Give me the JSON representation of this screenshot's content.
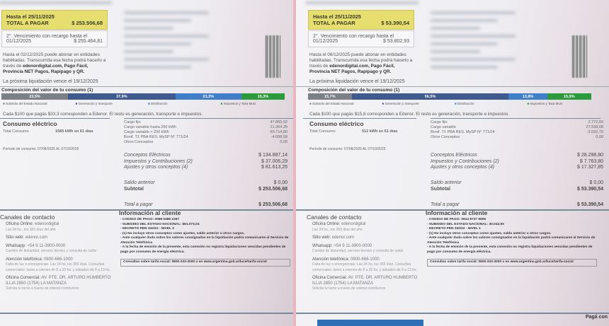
{
  "bills": [
    {
      "total_label": "TOTAL A PAGAR",
      "due1": "Hasta el 25/11/2025",
      "total": "$ 253.506,68",
      "second_due_label": "2°. Vencimiento con recargo hasta el",
      "second_due_date": "01/12/2025",
      "second_due_amount": "$ 255.464,81",
      "pay_text_1": "Hasta el 02/12/2025 puede abonar en entidades habilitadas. Transcurrida esa fecha podrá hacerlo a través de",
      "pay_text_2": "edenordigital.com, Pago Fácil, Provincia NET Pagos, Rapipago y QR.",
      "next": "La próxima liquidación vence el 19/12/2025",
      "composition_title": "Composición del valor de tu consumo (1)",
      "composition": [
        {
          "pct": 23.5,
          "label": "23,5%",
          "color": "#7d7f88"
        },
        {
          "pct": 37.9,
          "label": "37,9%",
          "color": "#3f5a8f"
        },
        {
          "pct": 23.3,
          "label": "23,3%",
          "color": "#3f7fc9"
        },
        {
          "pct": 15.3,
          "label": "15,3%",
          "color": "#2a9a3a"
        }
      ],
      "legend": [
        "Subsidio del Estado Nacional",
        "Generación y transporte",
        "Distribución",
        "Impuestos y Tasa Muni"
      ],
      "each100": "Cada $100 que pagás $33,3 corresponden a Edenor. El resto es generación, transporte e impuestos.",
      "consumo_title": "Consumo eléctrico",
      "consumo_label": "Total Consumo",
      "consumo_value": "1565  kWh en 61 días",
      "periodo": "Período de consumo:  07/08/2025 AL 07/10/2025",
      "charges": [
        "Cargo fijo",
        "Cargo variable hasta 250 kWh",
        "Cargo variable > 250 kWh",
        "Bonif. T1 PBA RES. MySP N° 771/24",
        "Otros Conceptos"
      ],
      "charge_values": [
        "47.865,92",
        "21.364,35",
        "69.714,80",
        "-4.058,58",
        "0,00"
      ],
      "summary": [
        {
          "label": "Conceptos Eléctricos",
          "value": "$ 134.887,14"
        },
        {
          "label": "Impuestos y Contribuciones (2)",
          "value": "$ 37.006,29"
        },
        {
          "label": "Ajustes y otros conceptos (4)",
          "value": "$ 81.613,25"
        }
      ],
      "saldo_label": "Saldo anterior",
      "saldo": "$ 0,00",
      "subtotal_label": "Subtotal",
      "subtotal": "$ 253.506,68",
      "total_pagar_label": "Total a pagar",
      "total_pagar": "$ 253.506,68",
      "contact_title": "Canales de contacto",
      "info_title": "Información al cliente",
      "info": [
        "- CODIGO DE PAGO: 0068 0488 2267",
        "- SUBSIDIO DEL ESTADO NACIONAL: $61.073,04",
        "- DECRETO PEN 332/22 - NIVEL 3",
        "- (1) No incluye otros conceptos como ajustes, saldo anterior u otros cargos.",
        "- Ante cualquier duda sobre los valores consignados en la liquidación podrá comunicarse al Servicio de Atención Telefónica",
        "- A la fecha de emisión de la presente, esta conexión no registra liquidaciones vencidas pendientes de pago por consumo de energía eléctrica."
      ],
      "tarifa": "Consultas sobre tarifa social: 0800-333-3000 o en www.argentina.gob.ar/luce/tarifa-social"
    },
    {
      "total_label": "TOTAL A PAGAR",
      "due1": "Hasta el 25/11/2025",
      "total": "$ 53.390,54",
      "second_due_label": "2°. Vencimiento con recargo hasta el",
      "second_due_date": "01/12/2025",
      "second_due_amount": "$ 53.802,93",
      "pay_text_1": "Hasta el 08/12/2025 puede abonar en entidades habilitadas. Transcurrida esa fecha podrá hacerlo a través de",
      "pay_text_2": "edenordigital.com, Pago Fácil, Provincia NET Pagos, Rapipago y QR.",
      "next": "La próxima liquidación vence el 19/12/2025",
      "composition_title": "Composición del valor de tu consumo (1)",
      "composition": [
        {
          "pct": 15.7,
          "label": "15,7%",
          "color": "#7d7f88"
        },
        {
          "pct": 56.5,
          "label": "56,5%",
          "color": "#3f5a8f"
        },
        {
          "pct": 13.8,
          "label": "13,8%",
          "color": "#3f7fc9"
        },
        {
          "pct": 15.9,
          "label": "15,9%",
          "color": "#2a9a3a"
        }
      ],
      "legend": [
        "Subsidio del Estado Nacional",
        "Generación y transporte",
        "Distribución",
        "Impuestos y Tasa Muni"
      ],
      "each100": "Cada $100 que pagás $15,8 corresponden a Edenor. El resto es generación, transporte e impuestos.",
      "consumo_title": "Consumo eléctrico",
      "consumo_label": "Total Consumo",
      "consumo_value": "512  kWh en 61 días",
      "periodo": "Período de consumo:  07/08/2025 AL 07/10/2025",
      "charges": [
        "Cargo fijo",
        "Cargo variable",
        "Bonif. T1 PBA RES. MySP N° 771/24",
        "Otros Conceptos"
      ],
      "charge_values": [
        "2.772,59",
        "27.558,08",
        "-2.032,79",
        "0,00"
      ],
      "summary": [
        {
          "label": "Conceptos Eléctricos",
          "value": "$ 28.298,80"
        },
        {
          "label": "Impuestos y Contribuciones (2)",
          "value": "$ 7.763,80"
        },
        {
          "label": "Ajustes y otros conceptos (4)",
          "value": "$ 17.327,85"
        }
      ],
      "saldo_label": "Saldo anterior",
      "saldo": "$ 0,00",
      "subtotal_label": "Subtotal",
      "subtotal": "$ 53.390,54",
      "total_pagar_label": "Total a pagar",
      "total_pagar": "$ 53.390,54",
      "contact_title": "Canales de contacto",
      "info_title": "Información al cliente",
      "info": [
        "- CODIGO DE PAGO: 0614 8737 9606",
        "- SUBSIDIO DEL ESTADO NACIONAL: 30.042,93",
        "- DECRETO PEN 332/22 - NIVEL 1",
        "- (1) No incluye otros conceptos como ajustes, saldo anterior u otros cargos.",
        "- Ante cualquier duda sobre los valores consignados en la liquidación podrá comunicarse al Servicio de Atención Telefónica",
        "- A la fecha de emisión de la presente, esta conexión no registra liquidaciones vencidas pendientes de pago por consumo de energía eléctrica."
      ],
      "tarifa": "Consultas sobre tarifa social: 0800-333-3000 o en www.argentina.gob.ar/luce/tarifa-social",
      "paga_con": "Pagá con"
    }
  ],
  "contact": [
    {
      "title": "Oficina Online:",
      "value": "edenordigital",
      "sub": "Las 24 hs., los 365 días del año"
    },
    {
      "title": "Sitio web:",
      "value": "edenor.com",
      "sub": ""
    },
    {
      "title": "Whatsapp:",
      "value": "+54 9 11-3900-0000",
      "sub": "Cambio de titularidad, servicio técnico y consulta de saldo"
    },
    {
      "title": "Atención telefónica:",
      "value": "0800-666-1000",
      "sub": "Falta de luz o emergencias: Las 24 hs, los 365 días. Consultas comerciales: lunes a viernes de 8 a 20 hs. y sábados de 9 a 13 hs."
    },
    {
      "title": "Oficina Comercial:",
      "value": "AV. PTE. DR. ARTURO HUMBERTO ILLIA 2850 (1754) LA MATANZA",
      "sub": "Solicita tu turno a través de edenor.com/turnos"
    }
  ]
}
